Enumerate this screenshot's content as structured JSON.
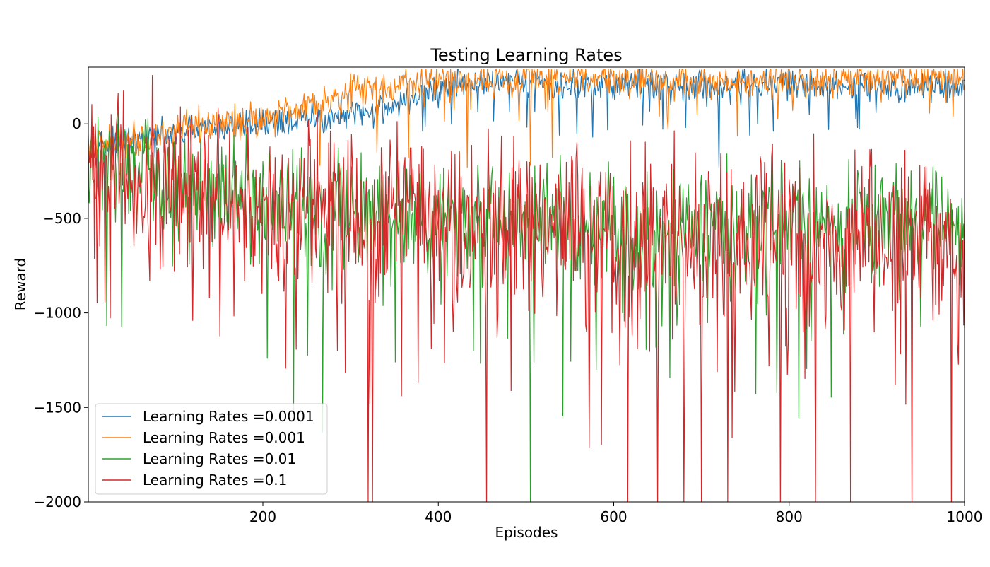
{
  "chart_data": {
    "type": "line",
    "title": "Testing Learning Rates",
    "xlabel": "Episodes",
    "ylabel": "Reward",
    "xlim": [
      1,
      1000
    ],
    "ylim": [
      -2000,
      300
    ],
    "x_ticks": [
      200,
      400,
      600,
      800,
      1000
    ],
    "x_tick_labels": [
      "200",
      "400",
      "600",
      "800",
      "1000"
    ],
    "y_ticks": [
      0,
      -500,
      -1000,
      -1500,
      -2000
    ],
    "y_tick_labels": [
      "0",
      "−500",
      "−1000",
      "−1500",
      "−2000"
    ],
    "grid": false,
    "legend_position": "lower-left",
    "series": [
      {
        "name": "Learning Rates =0.0001",
        "color": "#1f77b4",
        "x": [
          1,
          50,
          100,
          150,
          200,
          250,
          300,
          350,
          400,
          450,
          500,
          550,
          600,
          650,
          700,
          750,
          800,
          850,
          900,
          950,
          1000
        ],
        "y": [
          -120,
          -100,
          -60,
          -20,
          10,
          20,
          40,
          100,
          180,
          220,
          220,
          200,
          210,
          210,
          200,
          210,
          200,
          200,
          210,
          200,
          200
        ],
        "noise": 40,
        "dips": [
          [
            720,
            -230
          ],
          [
            538,
            -60
          ],
          [
            576,
            -70
          ],
          [
            755,
            -60
          ],
          [
            845,
            -30
          ]
        ]
      },
      {
        "name": "Learning Rates =0.001",
        "color": "#ff7f0e",
        "x": [
          1,
          50,
          100,
          150,
          200,
          250,
          300,
          350,
          400,
          450,
          500,
          550,
          600,
          650,
          700,
          750,
          800,
          850,
          900,
          950,
          1000
        ],
        "y": [
          -120,
          -80,
          -40,
          0,
          30,
          100,
          170,
          200,
          230,
          240,
          240,
          240,
          240,
          230,
          230,
          230,
          230,
          230,
          230,
          230,
          240
        ],
        "noise": 45,
        "dips": [
          [
            265,
            -220
          ],
          [
            330,
            -150
          ],
          [
            366,
            -180
          ],
          [
            433,
            -230
          ],
          [
            505,
            -220
          ],
          [
            530,
            -180
          ],
          [
            695,
            50
          ]
        ]
      },
      {
        "name": "Learning Rates =0.01",
        "color": "#2ca02c",
        "x": [
          1,
          50,
          100,
          150,
          200,
          250,
          300,
          350,
          400,
          450,
          500,
          550,
          600,
          650,
          700,
          750,
          800,
          850,
          900,
          950,
          1000
        ],
        "y": [
          -200,
          -300,
          -350,
          -400,
          -420,
          -450,
          -450,
          -470,
          -480,
          -500,
          -500,
          -520,
          -520,
          -540,
          -540,
          -530,
          -520,
          -520,
          -520,
          -510,
          -530
        ],
        "noise": 150,
        "dips": [
          [
            235,
            -1540
          ],
          [
            268,
            -1630
          ],
          [
            505,
            -2000
          ],
          [
            205,
            -1240
          ],
          [
            440,
            -1200
          ],
          [
            580,
            -1300
          ],
          [
            1000,
            -1080
          ]
        ]
      },
      {
        "name": "Learning Rates =0.1",
        "color": "#d62728",
        "x": [
          1,
          50,
          100,
          150,
          200,
          250,
          300,
          350,
          400,
          450,
          500,
          550,
          600,
          650,
          700,
          750,
          800,
          850,
          900,
          950,
          1000
        ],
        "y": [
          -200,
          -280,
          -350,
          -400,
          -400,
          -450,
          -500,
          -520,
          -550,
          -560,
          -560,
          -580,
          -600,
          -620,
          -620,
          -620,
          -620,
          -620,
          -620,
          -620,
          -620
        ],
        "noise": 220,
        "dips": [
          [
            120,
            -1040
          ],
          [
            320,
            -2000
          ],
          [
            325,
            -2000
          ],
          [
            455,
            -2000
          ],
          [
            616,
            -2000
          ],
          [
            650,
            -2000
          ],
          [
            680,
            -2000
          ],
          [
            700,
            -2000
          ],
          [
            730,
            -2000
          ],
          [
            790,
            -2000
          ],
          [
            830,
            -2000
          ],
          [
            870,
            -2000
          ],
          [
            940,
            -2000
          ],
          [
            985,
            -2000
          ],
          [
            572,
            -1710
          ]
        ]
      }
    ]
  }
}
